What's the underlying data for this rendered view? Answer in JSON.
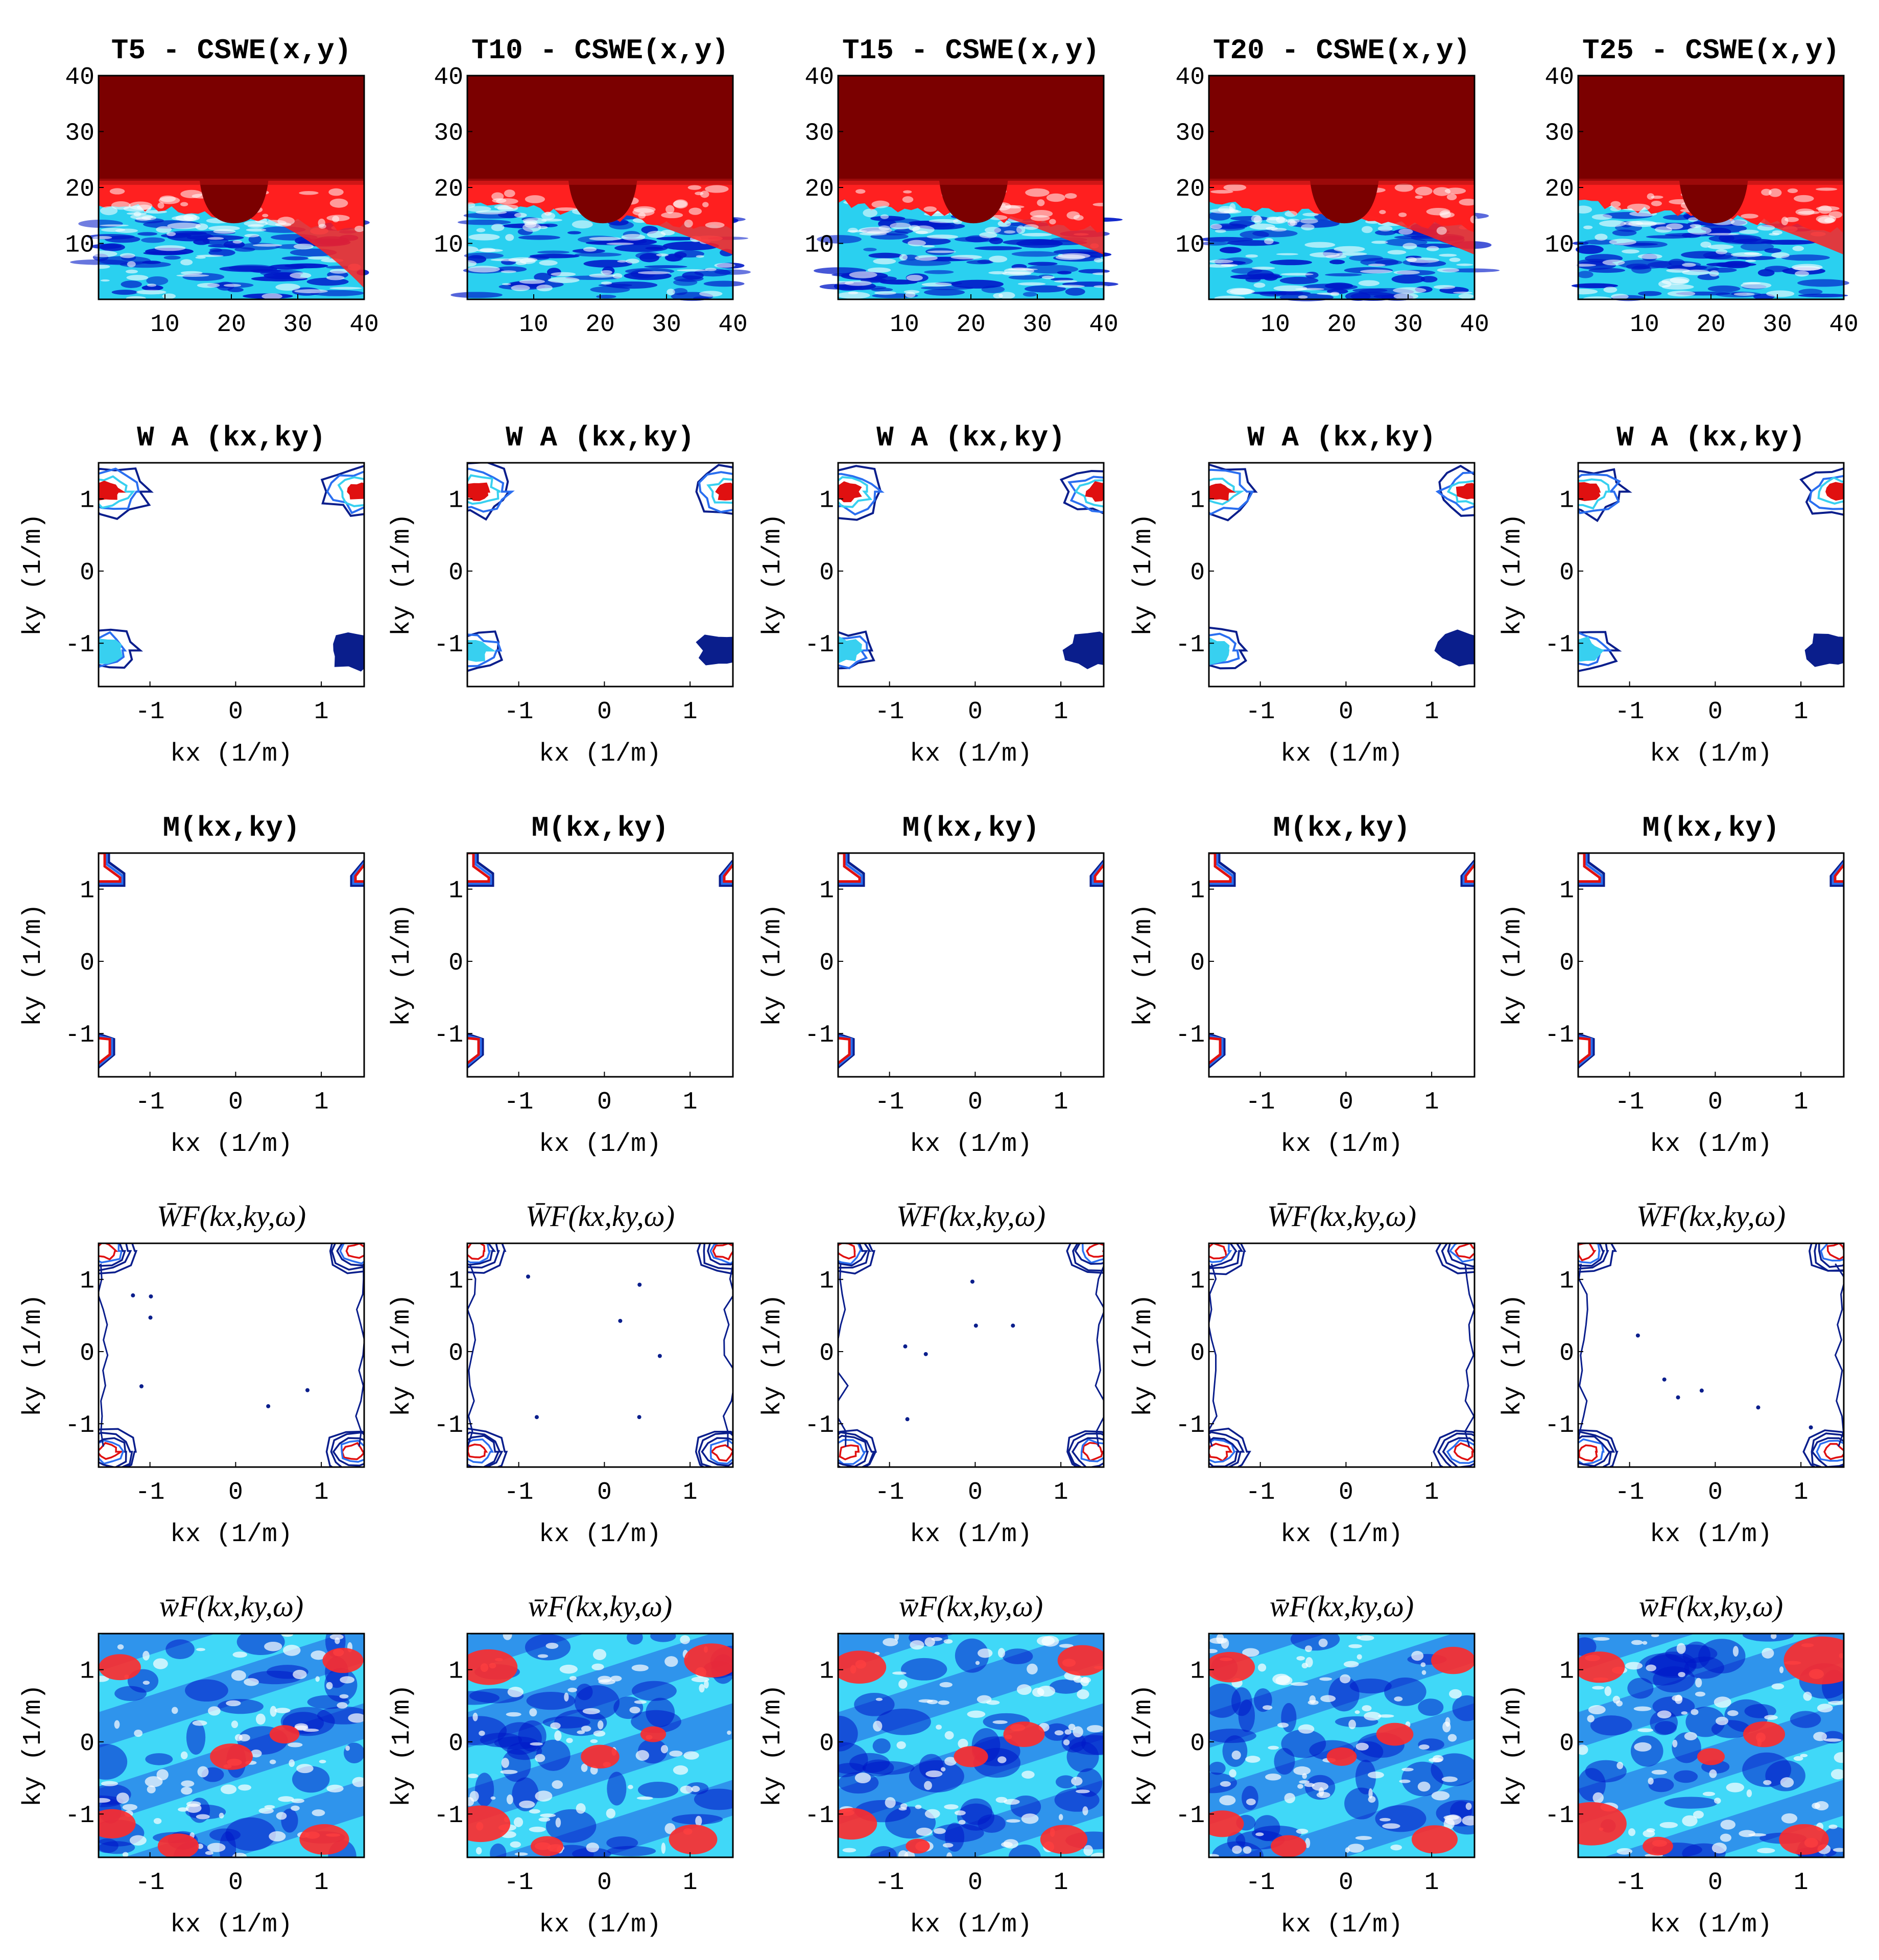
{
  "chart_data": {
    "type": "heatmap",
    "columns": [
      "T5",
      "T10",
      "T15",
      "T20",
      "T25"
    ],
    "rows": [
      {
        "row": 1,
        "kind": "filled-map",
        "titles": [
          "T5 - CSWE(x,y)",
          "T10 - CSWE(x,y)",
          "T15 - CSWE(x,y)",
          "T20 - CSWE(x,y)",
          "T25 - CSWE(x,y)"
        ],
        "xlabel": "",
        "ylabel": "",
        "xticks": [
          "10",
          "20",
          "30",
          "40"
        ],
        "yticks": [
          "40",
          "30",
          "20",
          "10"
        ],
        "xlim": [
          0,
          40
        ],
        "ylim": [
          0,
          40
        ],
        "colors": [
          "#7b0000",
          "#ff2020",
          "#ffffff",
          "#2ad0f0",
          "#0018c8"
        ]
      },
      {
        "row": 2,
        "kind": "contour",
        "titles": [
          "W A (kx,ky)",
          "W A (kx,ky)",
          "W A (kx,ky)",
          "W A (kx,ky)",
          "W A (kx,ky)"
        ],
        "xlabel": "kx (1/m)",
        "ylabel": "ky (1/m)",
        "xticks": [
          "-1",
          "0",
          "1"
        ],
        "yticks": [
          "1",
          "0",
          "-1"
        ],
        "xlim": [
          -1.6,
          1.5
        ],
        "ylim": [
          -1.6,
          1.5
        ],
        "colors": [
          "#0a1e8c",
          "#2a6ef0",
          "#38d0f0",
          "#e01010"
        ]
      },
      {
        "row": 3,
        "kind": "contour",
        "titles": [
          "M(kx,ky)",
          "M(kx,ky)",
          "M(kx,ky)",
          "M(kx,ky)",
          "M(kx,ky)"
        ],
        "xlabel": "kx (1/m)",
        "ylabel": "ky (1/m)",
        "xticks": [
          "-1",
          "0",
          "1"
        ],
        "yticks": [
          "1",
          "0",
          "-1"
        ],
        "xlim": [
          -1.6,
          1.5
        ],
        "ylim": [
          -1.6,
          1.5
        ],
        "colors": [
          "#0a1e8c",
          "#2a6ef0",
          "#e01010"
        ]
      },
      {
        "row": 4,
        "kind": "contour",
        "titles": [
          "W̄F(kx,ky,ω)",
          "W̄F(kx,ky,ω)",
          "W̄F(kx,ky,ω)",
          "W̄F(kx,ky,ω)",
          "W̄F(kx,ky,ω)"
        ],
        "xlabel": "kx (1/m)",
        "ylabel": "ky (1/m)",
        "xticks": [
          "-1",
          "0",
          "1"
        ],
        "yticks": [
          "1",
          "0",
          "-1"
        ],
        "xlim": [
          -1.6,
          1.5
        ],
        "ylim": [
          -1.6,
          1.5
        ],
        "colors": [
          "#0a1e8c",
          "#2a6ef0",
          "#e01010"
        ]
      },
      {
        "row": 5,
        "kind": "filled-map",
        "titles": [
          "w̄F(kx,ky,ω)",
          "w̄F(kx,ky,ω)",
          "w̄F(kx,ky,ω)",
          "w̄F(kx,ky,ω)",
          "w̄F(kx,ky,ω)"
        ],
        "xlabel": "kx (1/m)",
        "ylabel": "ky (1/m)",
        "xticks": [
          "-1",
          "0",
          "1"
        ],
        "yticks": [
          "1",
          "0",
          "-1"
        ],
        "xlim": [
          -1.6,
          1.5
        ],
        "ylim": [
          -1.6,
          1.5
        ],
        "colors": [
          "#0018c8",
          "#2a7ee8",
          "#40d8f8",
          "#ffffff",
          "#ff2a2a"
        ]
      }
    ]
  }
}
